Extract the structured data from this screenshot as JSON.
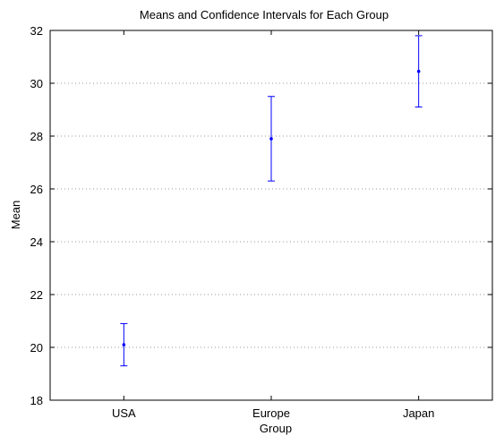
{
  "chart_data": {
    "type": "scatter",
    "title": "Means and Confidence Intervals for Each Group",
    "xlabel": "Group",
    "ylabel": "Mean",
    "categories": [
      "USA",
      "Europe",
      "Japan"
    ],
    "series": [
      {
        "values": [
          20.1,
          27.9,
          30.45
        ],
        "lower": [
          19.3,
          26.3,
          29.1
        ],
        "upper": [
          20.9,
          29.5,
          31.8
        ]
      }
    ],
    "ylim": [
      18,
      32
    ],
    "yticks": [
      18,
      20,
      22,
      24,
      26,
      28,
      30,
      32
    ],
    "grid": "horizontal-dotted",
    "colors": {
      "series": "#0000ff",
      "grid": "#9a9a9a",
      "axes": "#000000"
    }
  }
}
